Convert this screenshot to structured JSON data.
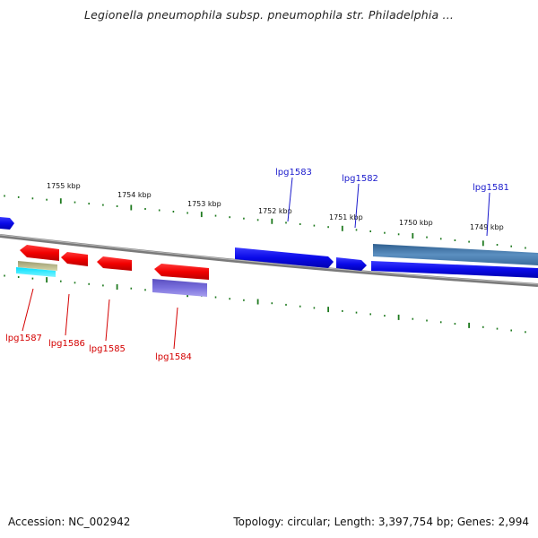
{
  "title": "Legionella pneumophila subsp. pneumophila str. Philadelphia ...",
  "footer": {
    "accession": "Accession: NC_002942",
    "topology": "Topology: circular; Length: 3,397,754 bp; Genes: 2,994"
  },
  "colors": {
    "tick": "#1f7a1f",
    "backbone": "#8a8a8a",
    "forward_gene": "#1010e0",
    "reverse_gene": "#ee0000",
    "label_forward": "#1a1acc",
    "label_reverse": "#d40000"
  },
  "scale_labels": [
    "1755 kbp",
    "1754 kbp",
    "1753 kbp",
    "1752 kbp",
    "1751 kbp",
    "1750 kbp",
    "1749 kbp"
  ],
  "genes_forward": [
    {
      "name": "lpg1583"
    },
    {
      "name": "lpg1582"
    },
    {
      "name": "lpg1581"
    }
  ],
  "genes_reverse": [
    {
      "name": "lpg1587"
    },
    {
      "name": "lpg1586"
    },
    {
      "name": "lpg1585"
    },
    {
      "name": "lpg1584"
    }
  ]
}
